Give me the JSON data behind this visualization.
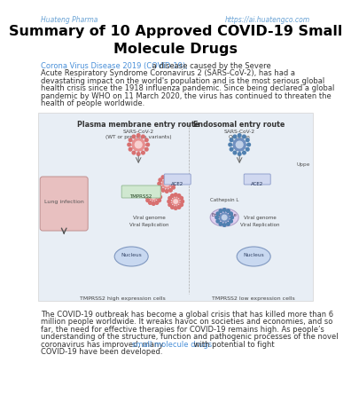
{
  "header_left": "Huateng Pharma",
  "header_right": "https://ai.huatengco.com",
  "header_color": "#6aa3d5",
  "title": "Summary of 10 Approved COVID-19 Small\nMolecule Drugs",
  "intro_link": "Corona Virus Disease 2019 (COVID-19),",
  "intro_link_color": "#4a90d9",
  "intro_text": " a disease caused by the Severe Acute Respiratory Syndrome Coronavirus 2 (SARS-CoV-2), has had a devastating impact on the world's population and is the most serious global health crisis since the 1918 influenza pandemic. Since being declared a global pandemic by WHO on 11 March 2020, the virus has continued to threaten the health of people worldwide.",
  "body_link": "small molecule drugs",
  "body_link_color": "#4a90d9",
  "bg_color": "#ffffff",
  "text_color": "#333333",
  "diagram_bg": "#e8eef5",
  "diagram_label_left": "Plasma membrane entry route",
  "diagram_label_right": "Endosomal entry route",
  "diagram_lung": "Lung infection",
  "diagram_tmprss2_high": "TMPRSS2 high expression cells",
  "diagram_tmprss2_low": "TMPRSS2 low expression cells",
  "diagram_ace2": "ACE2",
  "diagram_tmprss2": "TMPRSS2",
  "diagram_cathepsin": "Cathepsin L",
  "diagram_endosome": "Endosome",
  "diagram_nucleus": "Nucleus",
  "diagram_viral_genome": "Viral genome",
  "diagram_viral_replication": "Viral Replication"
}
